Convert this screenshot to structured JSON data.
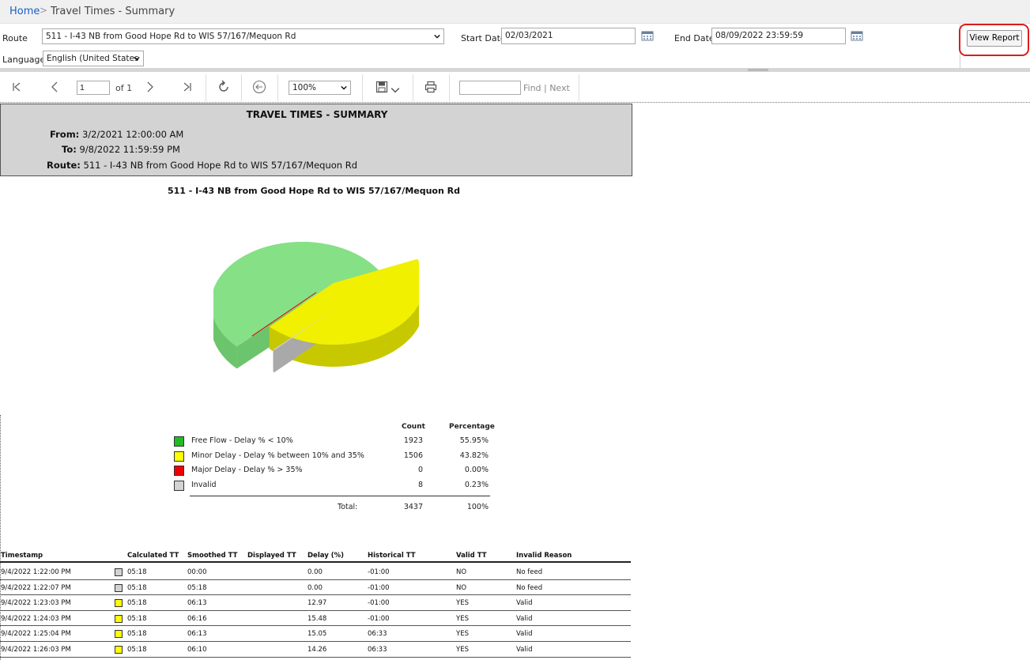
{
  "breadcrumb": {
    "home": "Home",
    "separator": ">",
    "title": "Travel Times - Summary"
  },
  "params": {
    "route_label": "Route",
    "route_value": "511 - I-43 NB from Good Hope Rd to WIS 57/167/Mequon Rd",
    "language_label": "Language",
    "language_value": "English (United States",
    "start_label": "Start Date",
    "start_value": "02/03/2021",
    "end_label": "End Date",
    "end_value": "08/09/2022 23:59:59",
    "view_report": "View Report"
  },
  "toolbar": {
    "page_value": "1",
    "page_of": "of 1",
    "zoom_value": "100%",
    "find_label": "Find",
    "next_label": "| Next"
  },
  "report": {
    "title": "TRAVEL TIMES - SUMMARY",
    "from_key": "From:",
    "from_value": "3/2/2021 12:00:00 AM",
    "to_key": "To:",
    "to_value": "9/8/2022 11:59:59 PM",
    "route_key": "Route:",
    "route_value": "511 - I-43 NB from Good Hope Rd to WIS 57/167/Mequon Rd",
    "chart_title": "511 - I-43 NB from Good Hope Rd to WIS 57/167/Mequon Rd"
  },
  "chart_data": {
    "type": "pie",
    "title": "511 - I-43 NB from Good Hope Rd to WIS 57/167/Mequon Rd",
    "categories": [
      "Free Flow - Delay % < 10%",
      "Minor Delay - Delay % between 10% and 35%",
      "Major Delay - Delay % > 35%",
      "Invalid"
    ],
    "values": [
      1923,
      1506,
      0,
      8
    ],
    "colors": [
      "#86e086",
      "#f0f000",
      "#e00000",
      "#d3d3d3"
    ]
  },
  "legend": {
    "count_header": "Count",
    "pct_header": "Percentage",
    "rows": [
      {
        "label": "Free Flow - Delay % < 10%",
        "count": "1923",
        "pct": "55.95%",
        "color": "#22bb22"
      },
      {
        "label": "Minor Delay - Delay % between 10% and 35%",
        "count": "1506",
        "pct": "43.82%",
        "color": "#ffff00"
      },
      {
        "label": "Major Delay - Delay % > 35%",
        "count": "0",
        "pct": "0.00%",
        "color": "#ee0000"
      },
      {
        "label": "Invalid",
        "count": "8",
        "pct": "0.23%",
        "color": "#d3d3d3"
      }
    ],
    "total_label": "Total:",
    "total_count": "3437",
    "total_pct": "100%"
  },
  "table": {
    "headers": [
      "Timestamp",
      "Calculated TT",
      "Smoothed TT",
      "Displayed TT",
      "Delay (%)",
      "Historical TT",
      "Valid TT",
      "Invalid Reason"
    ],
    "rows": [
      {
        "ts": "9/4/2022 1:22:00 PM",
        "color": "#d3d3d3",
        "calc": "05:18",
        "smooth": "00:00",
        "disp": "",
        "delay": "0.00",
        "hist": "-01:00",
        "valid": "NO",
        "reason": "No feed"
      },
      {
        "ts": "9/4/2022 1:22:07 PM",
        "color": "#d3d3d3",
        "calc": "05:18",
        "smooth": "05:18",
        "disp": "",
        "delay": "0.00",
        "hist": "-01:00",
        "valid": "NO",
        "reason": "No feed"
      },
      {
        "ts": "9/4/2022 1:23:03 PM",
        "color": "#ffff00",
        "calc": "05:18",
        "smooth": "06:13",
        "disp": "",
        "delay": "12.97",
        "hist": "-01:00",
        "valid": "YES",
        "reason": "Valid"
      },
      {
        "ts": "9/4/2022 1:24:03 PM",
        "color": "#ffff00",
        "calc": "05:18",
        "smooth": "06:16",
        "disp": "",
        "delay": "15.48",
        "hist": "-01:00",
        "valid": "YES",
        "reason": "Valid"
      },
      {
        "ts": "9/4/2022 1:25:04 PM",
        "color": "#ffff00",
        "calc": "05:18",
        "smooth": "06:13",
        "disp": "",
        "delay": "15.05",
        "hist": "06:33",
        "valid": "YES",
        "reason": "Valid"
      },
      {
        "ts": "9/4/2022 1:26:03 PM",
        "color": "#ffff00",
        "calc": "05:18",
        "smooth": "06:10",
        "disp": "",
        "delay": "14.26",
        "hist": "06:33",
        "valid": "YES",
        "reason": "Valid"
      }
    ]
  }
}
